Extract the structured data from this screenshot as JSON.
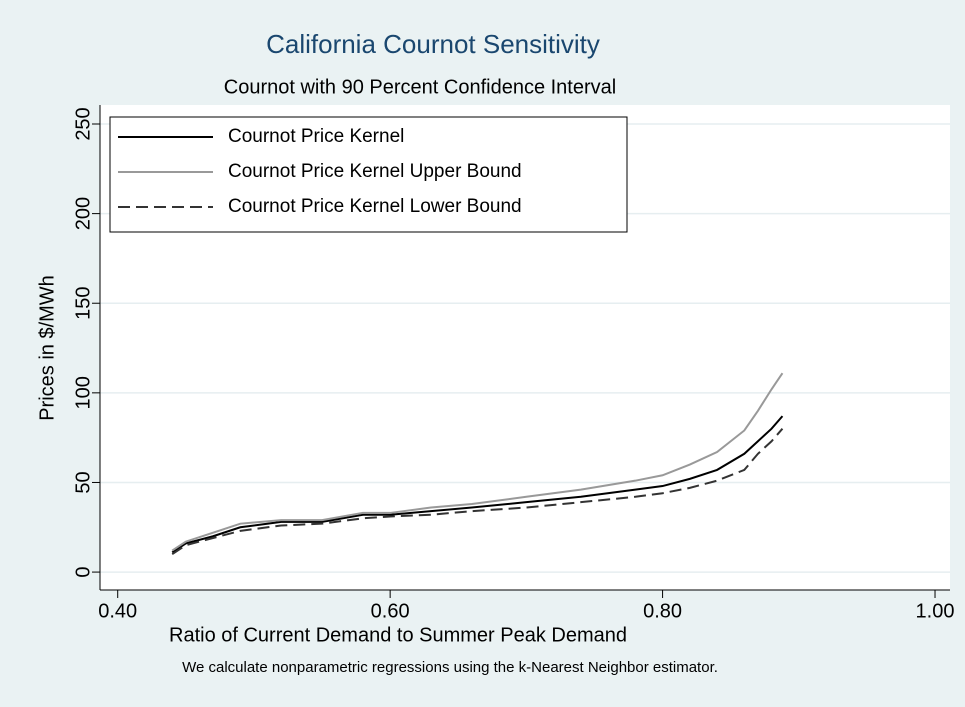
{
  "chart_data": {
    "type": "line",
    "title": "California Cournot Sensitivity",
    "subtitle": "Cournot with 90 Percent Confidence Interval",
    "x_label": "Ratio of Current Demand to Summer Peak Demand",
    "y_label": "Prices in $/MWh",
    "note": "We calculate nonparametric regressions using the k-Nearest Neighbor estimator.",
    "x": [
      0.44,
      0.45,
      0.47,
      0.49,
      0.52,
      0.55,
      0.58,
      0.6,
      0.63,
      0.66,
      0.7,
      0.74,
      0.78,
      0.8,
      0.82,
      0.84,
      0.86,
      0.87,
      0.88,
      0.888
    ],
    "series": [
      {
        "name": "Cournot Price Kernel",
        "color": "#000000",
        "line_style": "solid",
        "values": [
          11,
          16,
          20,
          25,
          28,
          28,
          32,
          32,
          34,
          36,
          39,
          42,
          46,
          48,
          52,
          57,
          66,
          73,
          80,
          87
        ]
      },
      {
        "name": "Cournot Price Kernel Upper Bound",
        "color": "#999999",
        "line_style": "solid",
        "values": [
          12,
          17,
          22,
          27,
          29,
          29,
          33,
          33,
          36,
          38,
          42,
          46,
          51,
          54,
          60,
          67,
          79,
          90,
          102,
          111
        ]
      },
      {
        "name": "Cournot Price Kernel Lower Bound",
        "color": "#333333",
        "line_style": "dashed",
        "values": [
          10,
          15,
          19,
          23,
          26,
          27,
          30,
          31,
          32,
          34,
          36,
          39,
          42,
          44,
          47,
          51,
          57,
          66,
          73,
          80
        ]
      }
    ],
    "xlim": [
      0.387,
      1.011
    ],
    "xticks": [
      {
        "value": 0.4,
        "label": "0.40"
      },
      {
        "value": 0.6,
        "label": "0.60"
      },
      {
        "value": 0.8,
        "label": "0.80"
      },
      {
        "value": 1.0,
        "label": "1.00"
      }
    ],
    "ylim": [
      -10,
      260.6
    ],
    "yticks": [
      0,
      50,
      100,
      150,
      200,
      250
    ],
    "grid": true,
    "legend": "top-left"
  }
}
